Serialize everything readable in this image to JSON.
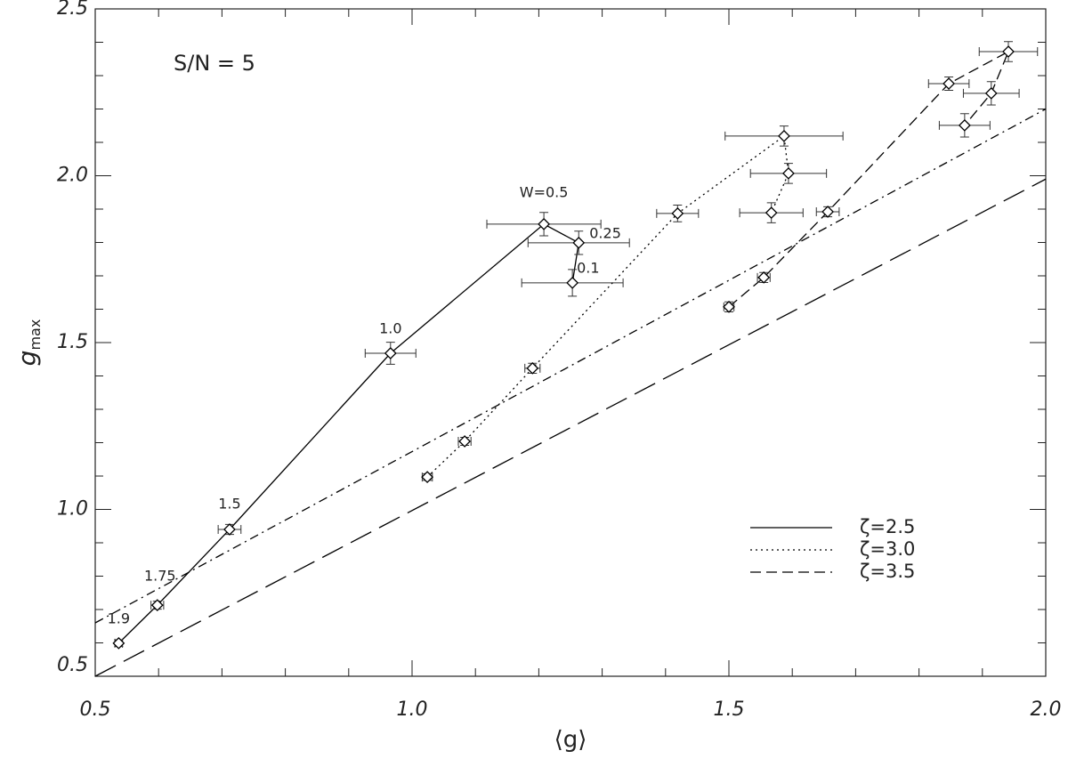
{
  "chart_data": {
    "type": "scatter",
    "annotation": "S/N = 5",
    "xlabel": "⟨g⟩",
    "ylabel": "g",
    "ylabel_sub": "max",
    "xlim": [
      0.5,
      2.0
    ],
    "ylim": [
      0.5,
      2.5
    ],
    "xticks": [
      0.5,
      {
        "value": 1,
        "label": "1.0"
      },
      1.5,
      {
        "value": 2,
        "label": "2.0"
      }
    ],
    "yticks": [
      0.5,
      {
        "value": 1,
        "label": "1.0"
      },
      1.5,
      {
        "value": 2,
        "label": "2.0"
      },
      2.5
    ],
    "xminorticks": [
      0.6,
      0.7,
      0.8,
      0.9,
      1.1,
      1.2,
      1.3,
      1.4,
      1.6,
      1.7,
      1.8,
      1.9
    ],
    "yminorticks": [
      0.6,
      0.7,
      0.8,
      0.9,
      1.1,
      1.2,
      1.3,
      1.4,
      1.6,
      1.7,
      1.8,
      1.9,
      2.1,
      2.2,
      2.3,
      2.4
    ],
    "legend": "lower right",
    "series": [
      {
        "name": "ζ=2.5",
        "color": "#000000",
        "line": "solid",
        "x": [
          0.537,
          0.598,
          0.712,
          0.966,
          1.208,
          1.263,
          1.253
        ],
        "values": [
          0.599,
          0.713,
          0.94,
          1.468,
          1.855,
          1.799,
          1.679
        ],
        "x_errors": [
          0.006,
          0.01,
          0.018,
          0.04,
          0.09,
          0.08,
          0.08
        ],
        "y_errors": [
          0.01,
          0.012,
          0.015,
          0.033,
          0.035,
          0.035,
          0.04
        ],
        "point_labels": [
          "1.9",
          "1.75",
          "1.5",
          "1.0",
          "W=0.5",
          "0.25",
          "0.1"
        ]
      },
      {
        "name": "ζ=3.0",
        "color": "#000000",
        "line": "dotted",
        "x": [
          1.024,
          1.083,
          1.19,
          1.419,
          1.587,
          1.594,
          1.567
        ],
        "values": [
          1.097,
          1.204,
          1.423,
          1.887,
          2.119,
          2.007,
          1.889
        ],
        "x_errors": [
          0.008,
          0.01,
          0.012,
          0.033,
          0.093,
          0.06,
          0.05
        ],
        "y_errors": [
          0.01,
          0.012,
          0.015,
          0.025,
          0.03,
          0.03,
          0.03
        ]
      },
      {
        "name": "ζ=3.5",
        "color": "#000000",
        "line": "dashed",
        "x": [
          1.5,
          1.555,
          1.656,
          1.847,
          1.941,
          1.914,
          1.872
        ],
        "values": [
          1.607,
          1.695,
          1.892,
          2.276,
          2.372,
          2.247,
          2.151
        ],
        "x_errors": [
          0.008,
          0.01,
          0.018,
          0.032,
          0.046,
          0.044,
          0.04
        ],
        "y_errors": [
          0.015,
          0.015,
          0.015,
          0.02,
          0.03,
          0.035,
          0.035
        ]
      }
    ],
    "reference_lines": [
      {
        "line": "dashdot",
        "color": "#000000",
        "x": [
          0.5,
          2.0
        ],
        "values": [
          0.66,
          2.2
        ]
      },
      {
        "line": "longdash",
        "color": "#000000",
        "x": [
          0.5,
          2.0
        ],
        "values": [
          0.5,
          1.99
        ]
      }
    ]
  }
}
